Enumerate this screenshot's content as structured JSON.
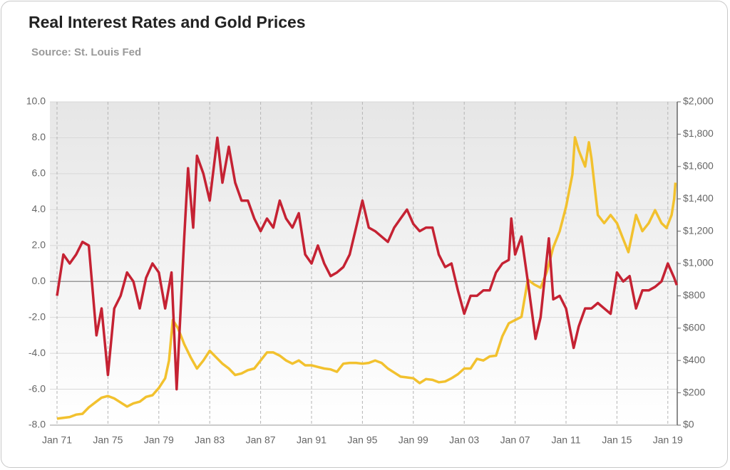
{
  "chart_data": {
    "type": "line",
    "title": "Real Interest Rates and Gold Prices",
    "subtitle": "Source: St. Louis Fed",
    "xlim": [
      1970.44,
      2019.74
    ],
    "xticks": [
      {
        "value": 1971,
        "label": "Jan 71"
      },
      {
        "value": 1975,
        "label": "Jan 75"
      },
      {
        "value": 1979,
        "label": "Jan 79"
      },
      {
        "value": 1983,
        "label": "Jan 83"
      },
      {
        "value": 1987,
        "label": "Jan 87"
      },
      {
        "value": 1991,
        "label": "Jan 91"
      },
      {
        "value": 1995,
        "label": "Jan 95"
      },
      {
        "value": 1999,
        "label": "Jan 99"
      },
      {
        "value": 2003,
        "label": "Jan 03"
      },
      {
        "value": 2007,
        "label": "Jan 07"
      },
      {
        "value": 2011,
        "label": "Jan 11"
      },
      {
        "value": 2015,
        "label": "Jan 15"
      },
      {
        "value": 2019,
        "label": "Jan 19"
      }
    ],
    "ylim": [
      -8,
      10
    ],
    "yticks": [
      {
        "value": -8,
        "label": "-8.0"
      },
      {
        "value": -6,
        "label": "-6.0"
      },
      {
        "value": -4,
        "label": "-4.0"
      },
      {
        "value": -2,
        "label": "-2.0"
      },
      {
        "value": 0,
        "label": "0.0"
      },
      {
        "value": 2,
        "label": "2.0"
      },
      {
        "value": 4,
        "label": "4.0"
      },
      {
        "value": 6,
        "label": "6.0"
      },
      {
        "value": 8,
        "label": "8.0"
      },
      {
        "value": 10,
        "label": "10.0"
      }
    ],
    "y2lim": [
      0,
      2000
    ],
    "y2ticks": [
      {
        "value": 0,
        "label": "$0"
      },
      {
        "value": 200,
        "label": "$200"
      },
      {
        "value": 400,
        "label": "$400"
      },
      {
        "value": 600,
        "label": "$600"
      },
      {
        "value": 800,
        "label": "$800"
      },
      {
        "value": 1000,
        "label": "$1,000"
      },
      {
        "value": 1200,
        "label": "$1,200"
      },
      {
        "value": 1400,
        "label": "$1,400"
      },
      {
        "value": 1600,
        "label": "$1,600"
      },
      {
        "value": 1800,
        "label": "$1,800"
      },
      {
        "value": 2000,
        "label": "$2,000"
      }
    ],
    "grid": true,
    "series": [
      {
        "color": "#f2c12e",
        "axis": "y2",
        "x": [
          1971.0,
          1972.0,
          1972.5,
          1973.0,
          1973.5,
          1974.0,
          1974.5,
          1975.0,
          1975.5,
          1976.0,
          1976.5,
          1977.0,
          1977.5,
          1978.0,
          1978.5,
          1979.0,
          1979.5,
          1979.8,
          1980.1,
          1980.5,
          1981.0,
          1981.5,
          1982.0,
          1982.5,
          1983.0,
          1983.5,
          1984.0,
          1984.5,
          1985.0,
          1985.5,
          1986.0,
          1986.5,
          1987.0,
          1987.5,
          1988.0,
          1988.5,
          1989.0,
          1989.5,
          1990.0,
          1990.5,
          1991.0,
          1991.5,
          1992.0,
          1992.5,
          1993.0,
          1993.5,
          1994.0,
          1994.5,
          1995.0,
          1995.5,
          1996.0,
          1996.5,
          1997.0,
          1997.5,
          1998.0,
          1998.5,
          1999.0,
          1999.5,
          2000.0,
          2000.5,
          2001.0,
          2001.5,
          2002.0,
          2002.5,
          2003.0,
          2003.5,
          2004.0,
          2004.5,
          2005.0,
          2005.5,
          2006.0,
          2006.5,
          2007.0,
          2007.5,
          2008.0,
          2008.5,
          2009.0,
          2009.5,
          2010.0,
          2010.5,
          2011.0,
          2011.5,
          2011.7,
          2012.0,
          2012.5,
          2012.8,
          2013.0,
          2013.5,
          2014.0,
          2014.5,
          2015.0,
          2015.5,
          2015.9,
          2016.5,
          2017.0,
          2017.5,
          2018.0,
          2018.5,
          2018.9,
          2019.3,
          2019.5,
          2019.6
        ],
        "values": [
          40,
          50,
          65,
          70,
          110,
          140,
          170,
          180,
          165,
          140,
          115,
          135,
          145,
          175,
          185,
          230,
          290,
          400,
          650,
          600,
          500,
          420,
          350,
          400,
          460,
          420,
          380,
          350,
          310,
          320,
          340,
          350,
          400,
          450,
          450,
          430,
          400,
          380,
          400,
          370,
          370,
          360,
          350,
          345,
          330,
          380,
          385,
          385,
          380,
          385,
          400,
          385,
          350,
          325,
          300,
          295,
          290,
          260,
          285,
          280,
          265,
          270,
          290,
          315,
          350,
          350,
          410,
          400,
          425,
          430,
          550,
          630,
          650,
          670,
          900,
          870,
          850,
          950,
          1100,
          1200,
          1350,
          1550,
          1780,
          1700,
          1600,
          1750,
          1650,
          1300,
          1250,
          1300,
          1250,
          1150,
          1070,
          1300,
          1200,
          1250,
          1330,
          1250,
          1220,
          1300,
          1400,
          1500
        ]
      },
      {
        "color": "#c52233",
        "x": [
          1971.0,
          1971.5,
          1972.0,
          1972.5,
          1973.0,
          1973.5,
          1974.1,
          1974.5,
          1975.0,
          1975.5,
          1976.0,
          1976.5,
          1977.0,
          1977.5,
          1978.0,
          1978.5,
          1979.0,
          1979.5,
          1980.0,
          1980.4,
          1981.0,
          1981.3,
          1981.7,
          1982.0,
          1982.5,
          1983.0,
          1983.6,
          1984.0,
          1984.5,
          1985.0,
          1985.5,
          1986.0,
          1986.5,
          1987.0,
          1987.5,
          1988.0,
          1988.5,
          1989.0,
          1989.5,
          1990.0,
          1990.5,
          1991.0,
          1991.5,
          1992.0,
          1992.5,
          1993.0,
          1993.5,
          1994.0,
          1994.5,
          1995.0,
          1995.5,
          1996.0,
          1996.5,
          1997.0,
          1997.5,
          1998.0,
          1998.5,
          1999.0,
          1999.5,
          2000.0,
          2000.5,
          2001.0,
          2001.5,
          2002.0,
          2002.5,
          2003.0,
          2003.5,
          2004.0,
          2004.5,
          2005.0,
          2005.5,
          2006.0,
          2006.5,
          2006.7,
          2007.0,
          2007.5,
          2008.0,
          2008.6,
          2009.0,
          2009.65,
          2010.0,
          2010.5,
          2011.0,
          2011.6,
          2012.0,
          2012.5,
          2013.0,
          2013.5,
          2014.0,
          2014.5,
          2015.0,
          2015.5,
          2016.0,
          2016.5,
          2017.0,
          2017.5,
          2018.0,
          2018.5,
          2019.0,
          2019.5,
          2019.7
        ],
        "values": [
          -0.8,
          1.5,
          1.0,
          1.5,
          2.2,
          2.0,
          -3.0,
          -1.5,
          -5.2,
          -1.5,
          -0.8,
          0.5,
          0.0,
          -1.5,
          0.2,
          1.0,
          0.5,
          -1.5,
          0.5,
          -6.0,
          2.5,
          6.3,
          3.0,
          7.0,
          6.0,
          4.5,
          8.0,
          5.5,
          7.5,
          5.5,
          4.5,
          4.5,
          3.5,
          2.8,
          3.5,
          3.0,
          4.5,
          3.5,
          3.0,
          3.8,
          1.5,
          1.0,
          2.0,
          1.0,
          0.3,
          0.5,
          0.8,
          1.5,
          3.0,
          4.5,
          3.0,
          2.8,
          2.5,
          2.2,
          3.0,
          3.5,
          4.0,
          3.2,
          2.8,
          3.0,
          3.0,
          1.5,
          0.8,
          1.0,
          -0.5,
          -1.8,
          -0.8,
          -0.8,
          -0.5,
          -0.5,
          0.5,
          1.0,
          1.2,
          3.5,
          1.5,
          2.5,
          0.0,
          -3.2,
          -2.0,
          2.4,
          -1.0,
          -0.8,
          -1.5,
          -3.7,
          -2.5,
          -1.5,
          -1.5,
          -1.2,
          -1.5,
          -1.8,
          0.5,
          0.0,
          0.3,
          -1.5,
          -0.5,
          -0.5,
          -0.3,
          0.0,
          1.0,
          0.2,
          -0.2
        ]
      }
    ]
  }
}
